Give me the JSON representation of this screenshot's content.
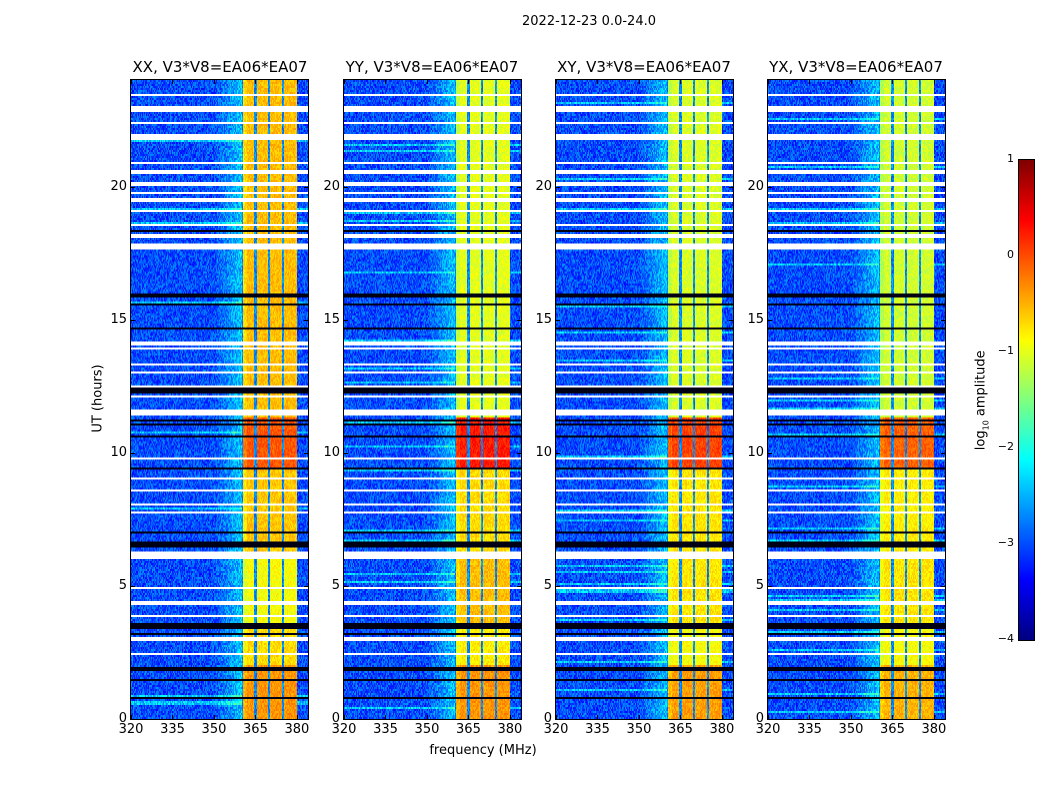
{
  "chart_data": {
    "type": "heatmap",
    "title": "2022-12-23 0.0-24.0",
    "xlabel": "frequency (MHz)",
    "ylabel": "UT (hours)",
    "xlim": [
      320,
      384
    ],
    "ylim": [
      0,
      24
    ],
    "xticks": [
      320,
      335,
      350,
      365,
      380
    ],
    "yticks": [
      0,
      5,
      10,
      15,
      20
    ],
    "colormap": "jet",
    "colorbar": {
      "label_main": "log",
      "label_sub": "10",
      "label_rest": " amplitude",
      "range": [
        -4,
        1
      ],
      "ticks": [
        1,
        0,
        -1,
        -2,
        -3,
        -4
      ],
      "tick_labels": [
        "1",
        "0",
        "−1",
        "−2",
        "−3",
        "−4"
      ]
    },
    "background_level": -3.0,
    "band_subbands_mhz": [
      [
        360.5,
        364.6
      ],
      [
        365.4,
        369.6
      ],
      [
        370.4,
        374.6
      ],
      [
        375.4,
        380.0
      ]
    ],
    "flagged_rows_hours": [
      23.46,
      23.0,
      22.87,
      22.4,
      21.9,
      21.8,
      20.9,
      20.55,
      20.1,
      19.74,
      19.5,
      19.07,
      18.58,
      [
        18.1,
        18.25
      ],
      17.8,
      17.7,
      [
        14.05,
        14.2
      ],
      13.9,
      13.3,
      13.04,
      12.48,
      12.1,
      [
        11.4,
        11.6
      ],
      9.76,
      9.05,
      8.6,
      [
        8.0,
        8.12
      ],
      7.78,
      [
        6.0,
        6.3
      ],
      4.9,
      4.35,
      [
        3.8,
        3.92
      ],
      3.0,
      2.44
    ],
    "dark_rows_hours": [
      18.3,
      16.5,
      15.9,
      15.6,
      14.7,
      12.4,
      12.3,
      11.2,
      11.1,
      10.6,
      9.4,
      7.0,
      6.6,
      6.5,
      [
        3.4,
        3.62
      ],
      3.2,
      1.9,
      1.85,
      1.5,
      0.8
    ],
    "panels": [
      {
        "title": "XX, V3*V8=EA06*EA07",
        "band_levels": [
          {
            "t": [
              0,
              2
            ],
            "v": -0.35
          },
          {
            "t": [
              2,
              3.4
            ],
            "v": -0.7
          },
          {
            "t": [
              3.6,
              6
            ],
            "v": -0.9
          },
          {
            "t": [
              6.3,
              9.4
            ],
            "v": -0.6
          },
          {
            "t": [
              9.4,
              11.3
            ],
            "v": -0.05
          },
          {
            "t": [
              11.3,
              24
            ],
            "v": -0.55
          }
        ]
      },
      {
        "title": "YY, V3*V8=EA06*EA07",
        "band_levels": [
          {
            "t": [
              0,
              2
            ],
            "v": -0.35
          },
          {
            "t": [
              2,
              3.4
            ],
            "v": -0.8
          },
          {
            "t": [
              3.6,
              6
            ],
            "v": -0.55
          },
          {
            "t": [
              6.3,
              9.4
            ],
            "v": -0.7
          },
          {
            "t": [
              9.4,
              11.3
            ],
            "v": 0.25
          },
          {
            "t": [
              11.3,
              24
            ],
            "v": -1.0
          }
        ]
      },
      {
        "title": "XY, V3*V8=EA06*EA07",
        "band_levels": [
          {
            "t": [
              0,
              2
            ],
            "v": -0.4
          },
          {
            "t": [
              2,
              3.4
            ],
            "v": -0.9
          },
          {
            "t": [
              3.6,
              6
            ],
            "v": -0.75
          },
          {
            "t": [
              6.3,
              9.4
            ],
            "v": -0.75
          },
          {
            "t": [
              9.4,
              11.3
            ],
            "v": 0.05
          },
          {
            "t": [
              11.3,
              24
            ],
            "v": -1.05
          }
        ]
      },
      {
        "title": "YX, V3*V8=EA06*EA07",
        "band_levels": [
          {
            "t": [
              0,
              2
            ],
            "v": -0.5
          },
          {
            "t": [
              2,
              3.4
            ],
            "v": -0.9
          },
          {
            "t": [
              3.6,
              6
            ],
            "v": -0.75
          },
          {
            "t": [
              6.3,
              9.4
            ],
            "v": -0.8
          },
          {
            "t": [
              9.4,
              11.3
            ],
            "v": -0.1
          },
          {
            "t": [
              11.3,
              24
            ],
            "v": -1.1
          }
        ]
      }
    ]
  }
}
